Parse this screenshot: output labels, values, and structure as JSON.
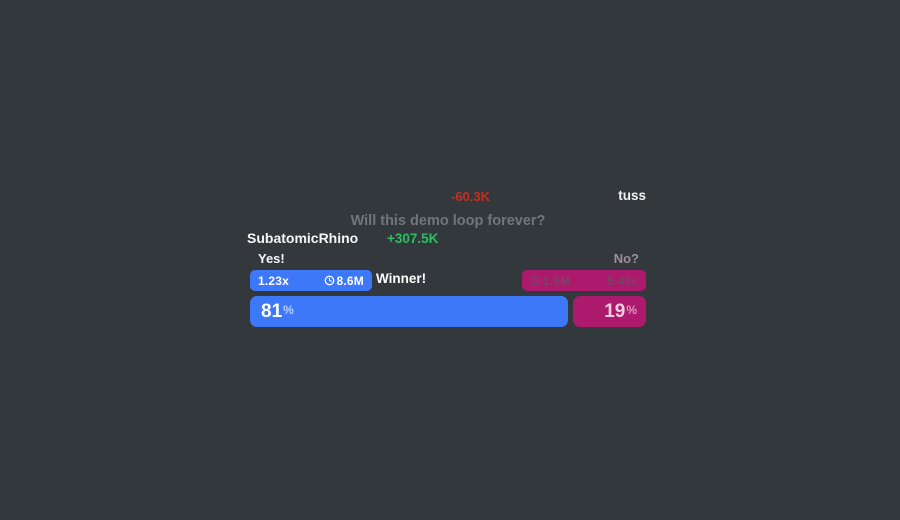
{
  "colors": {
    "background": "#33383d",
    "blue": "#3d78f8",
    "magenta": "#ad1a6d",
    "red": "#c52f1d",
    "green": "#2dbd63"
  },
  "prediction": {
    "net_change_negative": "-60.3K",
    "username_fragment": "tuss",
    "question": "Will this demo loop forever?",
    "player_name": "SubatomicRhino",
    "net_change_positive": "+307.5K",
    "winner_label": "Winner!",
    "outcomes": [
      {
        "label": "Yes!",
        "multiplier": "1.23x",
        "pool": "8.6M",
        "percent": "81",
        "percent_symbol": "%",
        "percent_value": 81
      },
      {
        "label": "No?",
        "multiplier": "5.40x",
        "pool": "1.9M",
        "percent": "19",
        "percent_symbol": "%",
        "percent_value": 19
      }
    ]
  }
}
